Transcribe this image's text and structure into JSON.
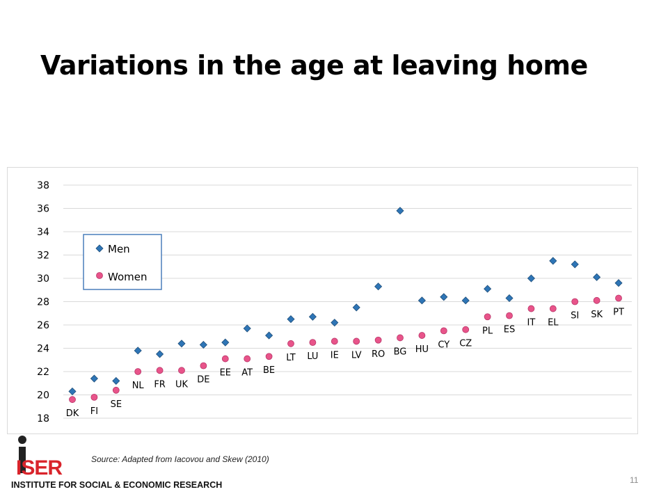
{
  "slide": {
    "title": "Variations in the age at leaving home",
    "source": "Source: Adapted from Iacovou and Skew (2010)",
    "page_number": "11",
    "logo_text": "ISER",
    "logo_caption": "INSTITUTE FOR SOCIAL & ECONOMIC RESEARCH"
  },
  "chart_data": {
    "type": "scatter",
    "categories": [
      "DK",
      "FI",
      "SE",
      "NL",
      "FR",
      "UK",
      "DE",
      "EE",
      "AT",
      "BE",
      "LT",
      "LU",
      "IE",
      "LV",
      "RO",
      "BG",
      "HU",
      "CY",
      "CZ",
      "PL",
      "ES",
      "IT",
      "EL",
      "SI",
      "SK",
      "PT"
    ],
    "series": [
      {
        "name": "Men",
        "color": "#2e75b6",
        "marker": "diamond",
        "values": [
          20.3,
          21.4,
          21.2,
          23.8,
          23.5,
          24.4,
          24.3,
          24.5,
          25.7,
          25.1,
          26.5,
          26.7,
          26.2,
          27.5,
          29.3,
          35.8,
          28.1,
          28.4,
          28.1,
          29.1,
          28.3,
          30.0,
          31.5,
          31.2,
          30.1,
          29.6
        ]
      },
      {
        "name": "Women",
        "color": "#e8548a",
        "marker": "circle",
        "values": [
          19.6,
          19.8,
          20.4,
          22.0,
          22.1,
          22.1,
          22.5,
          23.1,
          23.1,
          23.3,
          24.4,
          24.5,
          24.6,
          24.6,
          24.7,
          24.9,
          25.1,
          25.5,
          25.6,
          26.7,
          26.8,
          27.4,
          27.4,
          28.0,
          28.1,
          28.3
        ]
      }
    ],
    "ylim": [
      18,
      38
    ],
    "yticks": [
      18,
      20,
      22,
      24,
      26,
      28,
      30,
      32,
      34,
      36,
      38
    ],
    "ytick_labels": [
      "18",
      "20",
      "22",
      "24",
      "26",
      "28",
      "30",
      "32",
      "34",
      "36",
      "38"
    ],
    "grid": true,
    "legend": "top-left",
    "title": "",
    "xlabel": "",
    "ylabel": ""
  }
}
